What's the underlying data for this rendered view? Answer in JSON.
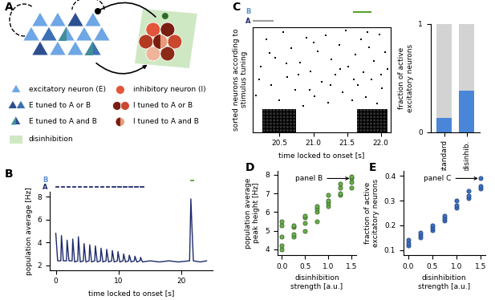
{
  "diagram": {
    "panel_label": "A",
    "legend": [
      {
        "shape": "triangle",
        "color": "#6ea6e6",
        "label": "excitatory neuron (E)"
      },
      {
        "shape": "triangle_pair",
        "color": "#2c4f8f",
        "label": "E tuned to A or B"
      },
      {
        "shape": "triangle_mixed",
        "color": "#3f8f9a",
        "label": "E tuned to A and B"
      },
      {
        "shape": "circle",
        "color": "#e2553a",
        "label": "inhibitory neuron (I)"
      },
      {
        "shape": "circle_pair",
        "color": "#7a1e12",
        "label": "I tuned to A or B"
      },
      {
        "shape": "circle_mixed",
        "color": "#e89a7a",
        "label": "I tuned to A and B"
      },
      {
        "shape": "patch",
        "color": "#cfe8c4",
        "label": "disinhibition"
      }
    ]
  },
  "chart_data": [
    {
      "panel_label": "B",
      "type": "line",
      "color": "#1f2a6b",
      "x": [
        0.0,
        0.3,
        0.8,
        0.9,
        1.2,
        1.7,
        1.8,
        2.1,
        2.6,
        2.7,
        3.0,
        3.5,
        3.6,
        3.9,
        4.4,
        4.5,
        4.8,
        5.3,
        5.4,
        5.7,
        6.2,
        6.3,
        6.6,
        7.1,
        7.2,
        7.5,
        8.0,
        8.1,
        8.4,
        8.9,
        9.0,
        9.3,
        9.8,
        9.9,
        10.2,
        10.7,
        10.8,
        11.1,
        11.6,
        11.7,
        12.0,
        12.5,
        12.6,
        12.9,
        13.4,
        13.5,
        13.8,
        15.0,
        16.5,
        18.0,
        19.5,
        21.3,
        21.5,
        21.7,
        21.9,
        23.0,
        24.0
      ],
      "values": [
        4.8,
        2.4,
        2.4,
        4.6,
        2.4,
        2.4,
        4.2,
        2.4,
        2.4,
        4.3,
        2.3,
        2.4,
        4.5,
        2.3,
        2.4,
        3.9,
        2.3,
        2.4,
        3.8,
        2.3,
        2.4,
        3.7,
        2.3,
        2.4,
        3.5,
        2.3,
        2.4,
        3.4,
        2.3,
        2.4,
        3.3,
        2.3,
        2.4,
        3.2,
        2.3,
        2.4,
        3.0,
        2.3,
        2.4,
        2.9,
        2.3,
        2.4,
        2.8,
        2.3,
        2.4,
        2.7,
        2.3,
        2.4,
        2.3,
        2.4,
        2.3,
        2.4,
        7.8,
        5.0,
        2.4,
        2.3,
        2.4
      ],
      "xlabel": "time locked to onset [s]",
      "ylabel": "population average [Hz]",
      "xlim": [
        -1,
        25
      ],
      "ylim": [
        1.6,
        8.4
      ],
      "xticks": [
        0,
        10,
        20
      ],
      "yticks": [
        2,
        4,
        6,
        8
      ],
      "stimuli": [
        {
          "name": "B",
          "color": "#5aa02c",
          "duration": 0.45,
          "onsets": [
            21.5
          ]
        },
        {
          "name": "A",
          "color": "#1f2a6b",
          "duration": 0.45,
          "onsets": [
            0.0,
            0.9,
            1.8,
            2.7,
            3.6,
            4.5,
            5.4,
            6.3,
            7.2,
            8.1,
            9.0,
            9.9,
            10.8,
            11.7,
            12.6,
            13.5
          ]
        }
      ]
    },
    {
      "panel_label": "C",
      "type": "raster",
      "xlabel": "time locked to onset [s]",
      "ylabel": "sorted neurons according to\nstimulus tuning",
      "xlim": [
        20.1,
        22.15
      ],
      "ylim": [
        0,
        1
      ],
      "xticks": [
        20.5,
        21.0,
        21.5,
        22.0
      ],
      "tick_labels": "x",
      "spikes": [
        [
          20.15,
          0.35
        ],
        [
          20.22,
          0.62
        ],
        [
          20.3,
          0.88
        ],
        [
          20.38,
          0.45
        ],
        [
          20.44,
          0.71
        ],
        [
          20.5,
          0.3
        ],
        [
          20.55,
          0.95
        ],
        [
          20.61,
          0.52
        ],
        [
          20.67,
          0.8
        ],
        [
          20.73,
          0.4
        ],
        [
          20.8,
          0.66
        ],
        [
          20.85,
          0.25
        ],
        [
          20.9,
          0.9
        ],
        [
          20.96,
          0.58
        ],
        [
          21.02,
          0.34
        ],
        [
          21.07,
          0.77
        ],
        [
          21.12,
          0.48
        ],
        [
          21.18,
          0.92
        ],
        [
          21.22,
          0.28
        ],
        [
          21.27,
          0.69
        ],
        [
          21.33,
          0.55
        ],
        [
          21.38,
          0.83
        ],
        [
          21.43,
          0.38
        ],
        [
          21.48,
          0.97
        ],
        [
          21.52,
          0.62
        ],
        [
          21.57,
          0.3
        ],
        [
          21.62,
          0.74
        ],
        [
          21.66,
          0.45
        ],
        [
          21.7,
          0.88
        ],
        [
          21.74,
          0.57
        ],
        [
          21.78,
          0.33
        ],
        [
          21.82,
          0.81
        ],
        [
          21.86,
          0.5
        ],
        [
          21.9,
          0.68
        ],
        [
          21.94,
          0.27
        ],
        [
          21.98,
          0.93
        ],
        [
          22.02,
          0.42
        ],
        [
          22.06,
          0.76
        ],
        [
          22.1,
          0.6
        ],
        [
          20.2,
          0.5
        ],
        [
          20.6,
          0.65
        ],
        [
          21.0,
          0.85
        ],
        [
          21.4,
          0.6
        ],
        [
          21.8,
          0.95
        ],
        [
          22.0,
          0.55
        ],
        [
          20.35,
          0.75
        ],
        [
          20.95,
          0.4
        ],
        [
          21.6,
          0.5
        ],
        [
          21.25,
          0.45
        ],
        [
          20.78,
          0.55
        ]
      ],
      "dense_bursts": [
        {
          "t": [
            20.25,
            20.75
          ],
          "neuron": [
            0,
            0.22
          ]
        },
        {
          "t": [
            21.65,
            22.1
          ],
          "neuron": [
            0,
            0.22
          ]
        }
      ],
      "stimuli": [
        {
          "name": "B",
          "color": "#5aa02c",
          "intervals": [
            [
              21.6,
              21.85
            ]
          ]
        },
        {
          "name": "A",
          "color": "#9e9e9e",
          "intervals": [
            [
              20.1,
              20.4
            ]
          ]
        }
      ]
    },
    {
      "type": "bar",
      "stacked": true,
      "categories": [
        "standard",
        "disinhib."
      ],
      "series": [
        {
          "color": "#4a86d8",
          "values": [
            0.13,
            0.38
          ]
        },
        {
          "color": "#d3d3d3",
          "values": [
            0.87,
            0.62
          ]
        }
      ],
      "ylabel": "fraction of active\nexcitatory neurons",
      "ylim": [
        0,
        1
      ],
      "yticks": [
        0,
        1
      ]
    },
    {
      "panel_label": "D",
      "type": "scatter",
      "color": "#6ab04c",
      "x": [
        0.0,
        0.0,
        0.0,
        0.0,
        0.0,
        0.25,
        0.25,
        0.25,
        0.25,
        0.5,
        0.5,
        0.5,
        0.5,
        0.75,
        0.75,
        0.75,
        0.75,
        1.0,
        1.0,
        1.0,
        1.0,
        1.25,
        1.25,
        1.25,
        1.25,
        1.5,
        1.5,
        1.5,
        1.5
      ],
      "values": [
        4.0,
        4.2,
        4.7,
        5.3,
        5.5,
        4.7,
        4.8,
        5.2,
        5.3,
        5.0,
        5.4,
        5.7,
        5.8,
        5.5,
        6.0,
        6.2,
        6.3,
        6.3,
        6.5,
        6.6,
        6.9,
        6.9,
        7.0,
        7.3,
        7.5,
        7.3,
        7.6,
        7.8,
        7.9
      ],
      "xlabel": "disinhibition\nstrength [a.u.]",
      "ylabel": "population average\npeak height [Hz]",
      "xlim": [
        -0.1,
        1.6
      ],
      "ylim": [
        3.7,
        8.2
      ],
      "xticks": [
        0.0,
        0.5,
        1.0,
        1.5
      ],
      "yticks": [
        4,
        5,
        6,
        7,
        8
      ],
      "annotations": [
        {
          "text": "panel B",
          "x": 1.5,
          "y": 7.8
        }
      ]
    },
    {
      "panel_label": "E",
      "type": "scatter",
      "color": "#3a6fc4",
      "x": [
        0.0,
        0.0,
        0.0,
        0.25,
        0.25,
        0.25,
        0.5,
        0.5,
        0.5,
        0.75,
        0.75,
        0.75,
        1.0,
        1.0,
        1.0,
        1.25,
        1.25,
        1.25,
        1.5,
        1.5,
        1.5
      ],
      "values": [
        0.12,
        0.13,
        0.14,
        0.15,
        0.16,
        0.17,
        0.18,
        0.19,
        0.2,
        0.22,
        0.23,
        0.24,
        0.27,
        0.28,
        0.3,
        0.31,
        0.32,
        0.34,
        0.35,
        0.36,
        0.39
      ],
      "xlabel": "disinhibition\nstrength [a.u.]",
      "ylabel": "fraction of active\nexcitatory neurons",
      "xlim": [
        -0.1,
        1.6
      ],
      "ylim": [
        0.08,
        0.42
      ],
      "xticks": [
        0.0,
        0.5,
        1.0,
        1.5
      ],
      "yticks": [
        0.1,
        0.2,
        0.3,
        0.4
      ],
      "annotations": [
        {
          "text": "panel C",
          "x": 1.5,
          "y": 0.39
        }
      ]
    }
  ]
}
